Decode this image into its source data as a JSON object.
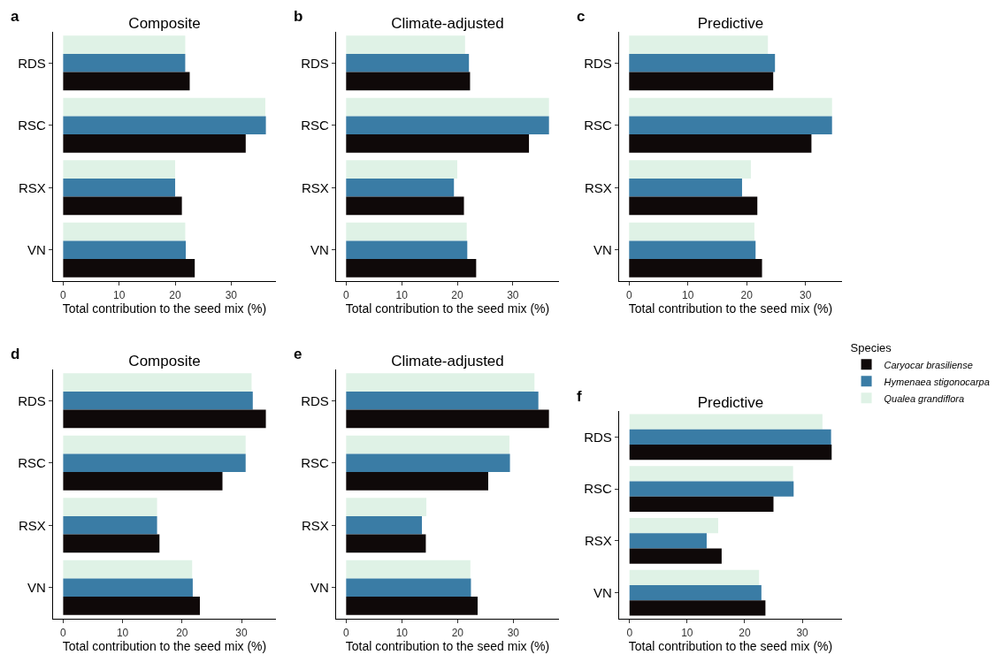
{
  "chart_data": [
    {
      "type": "bar",
      "orientation": "horizontal",
      "title": "Composite",
      "annotations": [
        "a"
      ],
      "xlabel": "Total contribution to the seed mix (%)",
      "categories": [
        "RDS",
        "RSC",
        "RSX",
        "VN"
      ],
      "xlim": [
        -1.8,
        38.0
      ],
      "xticks": [
        0,
        10,
        20,
        30
      ],
      "series": [
        {
          "color": "#0f0909",
          "values": [
            22.6,
            32.6,
            21.2,
            23.5
          ]
        },
        {
          "color": "#3a7ca5",
          "values": [
            21.8,
            36.2,
            20.0,
            21.9
          ]
        },
        {
          "color": "#dff2e6",
          "values": [
            21.8,
            36.1,
            20.0,
            21.8
          ]
        }
      ]
    },
    {
      "type": "bar",
      "orientation": "horizontal",
      "title": "Climate-adjusted",
      "annotations": [
        "b"
      ],
      "xlabel": "Total contribution to the seed mix (%)",
      "categories": [
        "RDS",
        "RSC",
        "RSX",
        "VN"
      ],
      "xlim": [
        -1.8,
        38.3
      ],
      "xticks": [
        0,
        10,
        20,
        30
      ],
      "series": [
        {
          "color": "#0f0909",
          "values": [
            22.3,
            32.9,
            21.2,
            23.4
          ]
        },
        {
          "color": "#3a7ca5",
          "values": [
            22.1,
            36.5,
            19.4,
            21.8
          ]
        },
        {
          "color": "#dff2e6",
          "values": [
            21.4,
            36.5,
            20.0,
            21.7
          ]
        }
      ]
    },
    {
      "type": "bar",
      "orientation": "horizontal",
      "title": "Predictive",
      "annotations": [
        "c"
      ],
      "xlabel": "Total contribution to the seed mix (%)",
      "categories": [
        "RDS",
        "RSC",
        "RSX",
        "VN"
      ],
      "xlim": [
        -1.7,
        36.2
      ],
      "xticks": [
        0,
        10,
        20,
        30
      ],
      "series": [
        {
          "color": "#0f0909",
          "values": [
            24.5,
            31.0,
            21.8,
            22.6
          ]
        },
        {
          "color": "#3a7ca5",
          "values": [
            24.8,
            34.5,
            19.2,
            21.5
          ]
        },
        {
          "color": "#dff2e6",
          "values": [
            23.6,
            34.5,
            20.7,
            21.3
          ]
        }
      ]
    },
    {
      "type": "bar",
      "orientation": "horizontal",
      "title": "Composite",
      "annotations": [
        "d"
      ],
      "xlabel": "Total contribution to the seed mix (%)",
      "categories": [
        "RDS",
        "RSC",
        "RSX",
        "VN"
      ],
      "xlim": [
        -1.7,
        35.8
      ],
      "xticks": [
        0,
        10,
        20,
        30
      ],
      "series": [
        {
          "color": "#0f0909",
          "values": [
            34.1,
            26.8,
            16.2,
            23.0
          ]
        },
        {
          "color": "#3a7ca5",
          "values": [
            31.9,
            30.7,
            15.8,
            21.8
          ]
        },
        {
          "color": "#dff2e6",
          "values": [
            31.7,
            30.7,
            15.8,
            21.7
          ]
        }
      ]
    },
    {
      "type": "bar",
      "orientation": "horizontal",
      "title": "Climate-adjusted",
      "annotations": [
        "e"
      ],
      "xlabel": "Total contribution to the seed mix (%)",
      "categories": [
        "RDS",
        "RSC",
        "RSX",
        "VN"
      ],
      "xlim": [
        -1.8,
        38.2
      ],
      "xticks": [
        0,
        10,
        20,
        30
      ],
      "series": [
        {
          "color": "#0f0909",
          "values": [
            36.4,
            25.5,
            14.3,
            23.6
          ]
        },
        {
          "color": "#3a7ca5",
          "values": [
            34.5,
            29.4,
            13.6,
            22.4
          ]
        },
        {
          "color": "#dff2e6",
          "values": [
            33.8,
            29.3,
            14.4,
            22.3
          ]
        }
      ]
    },
    {
      "type": "bar",
      "orientation": "horizontal",
      "title": "Predictive",
      "annotations": [
        "f"
      ],
      "xlabel": "Total contribution to the seed mix (%)",
      "categories": [
        "RDS",
        "RSC",
        "RSX",
        "VN"
      ],
      "xlim": [
        -1.8,
        36.9
      ],
      "xticks": [
        0,
        10,
        20,
        30
      ],
      "legend": "right",
      "legend_title": "Species",
      "series": [
        {
          "name": "Caryocar brasiliense",
          "color": "#0f0909",
          "values": [
            35.1,
            25.0,
            16.0,
            23.6
          ]
        },
        {
          "name": "Hymenaea stigonocarpa",
          "color": "#3a7ca5",
          "values": [
            35.0,
            28.5,
            13.4,
            22.9
          ]
        },
        {
          "name": "Qualea grandiflora",
          "color": "#dff2e6",
          "values": [
            33.5,
            28.4,
            15.4,
            22.5
          ]
        }
      ]
    }
  ]
}
